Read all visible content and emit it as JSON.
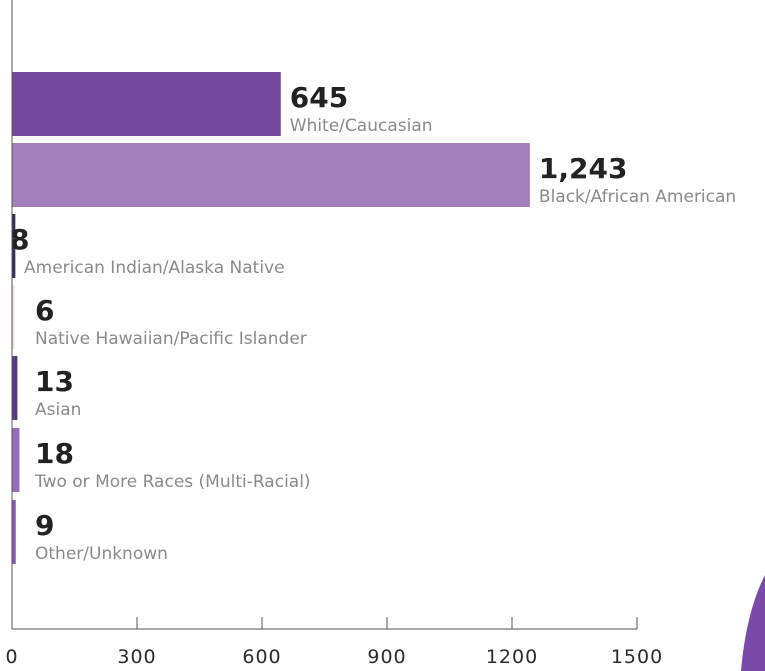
{
  "chart_data": {
    "type": "bar",
    "orientation": "horizontal",
    "categories": [
      "White/Caucasian",
      "Black/African American",
      "American Indian/Alaska Native",
      "Native Hawaiian/Pacific Islander",
      "Asian",
      "Two or More Races (Multi-Racial)",
      "Other/Unknown"
    ],
    "values": [
      645,
      1243,
      8,
      6,
      13,
      18,
      9
    ],
    "value_labels": [
      "645",
      "1,243",
      "8",
      "6",
      "13",
      "18",
      "9"
    ],
    "bar_colors": [
      "#74479f",
      "#a47fbb",
      "#3a2a63",
      "#eedff5",
      "#5c3a8a",
      "#9a6cbd",
      "#8a55b8"
    ],
    "xlim": [
      0,
      1500
    ],
    "xticks": [
      0,
      300,
      600,
      900,
      1200,
      1500
    ],
    "xtick_labels": [
      "0",
      "300",
      "600",
      "900",
      "1200",
      "1500"
    ],
    "grid": false,
    "legend": false,
    "decoration_color": "#7a4aa8"
  }
}
